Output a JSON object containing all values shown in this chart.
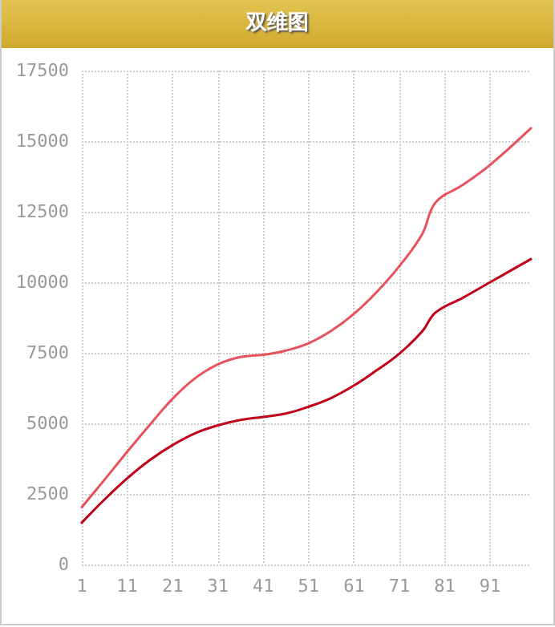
{
  "chart_data": {
    "type": "line",
    "title": "双维图",
    "xlim": [
      1,
      100
    ],
    "xticks": [
      1,
      11,
      21,
      31,
      41,
      51,
      61,
      71,
      81,
      91
    ],
    "ylim": [
      0,
      17500
    ],
    "yticks": [
      0,
      2500,
      5000,
      7500,
      10000,
      12500,
      15000,
      17500
    ],
    "grid": true,
    "marker": "none",
    "line_style": "solid",
    "series": [
      {
        "color": "#e8525c",
        "x": [
          1,
          6,
          11,
          16,
          21,
          26,
          31,
          36,
          41,
          46,
          51,
          56,
          61,
          66,
          71,
          76,
          79,
          85,
          91,
          100
        ],
        "values": [
          2030,
          3000,
          3990,
          4950,
          5870,
          6600,
          7090,
          7350,
          7430,
          7580,
          7840,
          8280,
          8880,
          9650,
          10570,
          11700,
          12830,
          13450,
          14160,
          15460
        ]
      },
      {
        "color": "#c0001a",
        "x": [
          1,
          6,
          11,
          16,
          21,
          26,
          31,
          36,
          41,
          46,
          51,
          56,
          61,
          66,
          71,
          76,
          79,
          85,
          91,
          100
        ],
        "values": [
          1480,
          2300,
          3050,
          3700,
          4230,
          4650,
          4930,
          5120,
          5230,
          5350,
          5590,
          5900,
          6340,
          6880,
          7470,
          8250,
          8930,
          9450,
          10000,
          10820
        ]
      }
    ]
  }
}
